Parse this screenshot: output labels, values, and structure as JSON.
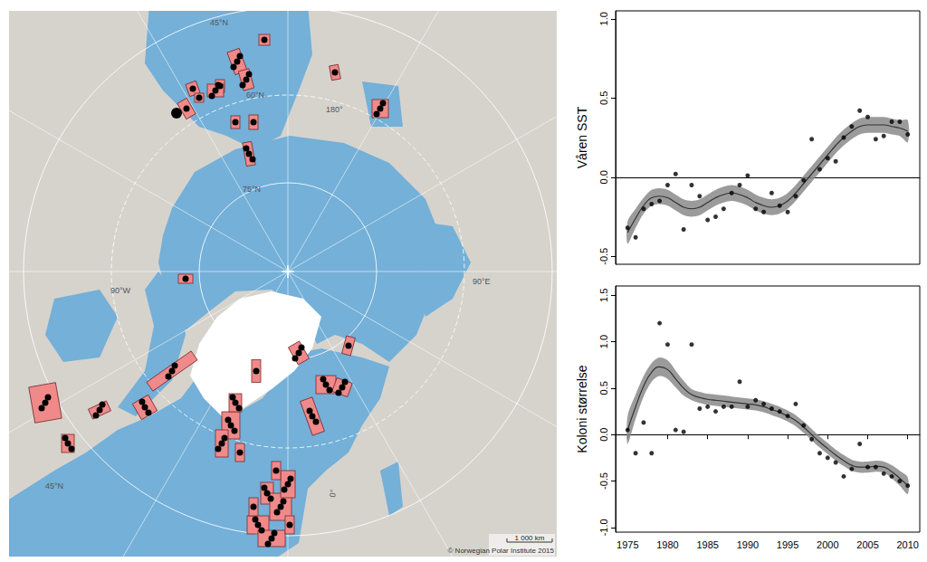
{
  "map": {
    "labels": [
      "45°N",
      "60°N",
      "75°N",
      "180°",
      "90°W",
      "90°E",
      "0°",
      "45°N"
    ],
    "scale_bar": "1 000 km",
    "credit": "© Norwegian Polar Institute 2015"
  },
  "chart_data": [
    {
      "type": "scatter",
      "y_label": "Våren SST",
      "color": "#000000",
      "tick_labels": "y",
      "x": [
        1975,
        1976,
        1977,
        1978,
        1979,
        1980,
        1981,
        1982,
        1983,
        1984,
        1985,
        1986,
        1987,
        1988,
        1989,
        1990,
        1991,
        1992,
        1993,
        1994,
        1995,
        1996,
        1997,
        1998,
        1999,
        2000,
        2001,
        2002,
        2003,
        2004,
        2005,
        2006,
        2007,
        2008,
        2009,
        2010
      ],
      "values": [
        -0.32,
        -0.38,
        -0.2,
        -0.17,
        -0.15,
        -0.05,
        0.02,
        -0.33,
        -0.05,
        -0.12,
        -0.27,
        -0.25,
        -0.2,
        -0.1,
        -0.05,
        0.01,
        -0.2,
        -0.22,
        -0.1,
        -0.18,
        -0.22,
        -0.12,
        -0.02,
        0.24,
        0.05,
        0.12,
        0.1,
        0.25,
        0.32,
        0.42,
        0.38,
        0.24,
        0.26,
        0.35,
        0.35,
        0.27
      ],
      "fit": [
        -0.35,
        -0.26,
        -0.18,
        -0.13,
        -0.12,
        -0.13,
        -0.16,
        -0.19,
        -0.2,
        -0.19,
        -0.16,
        -0.13,
        -0.11,
        -0.1,
        -0.11,
        -0.13,
        -0.16,
        -0.18,
        -0.19,
        -0.18,
        -0.15,
        -0.1,
        -0.04,
        0.02,
        0.08,
        0.14,
        0.2,
        0.25,
        0.29,
        0.32,
        0.33,
        0.33,
        0.33,
        0.32,
        0.31,
        0.29
      ],
      "fit_lower": [
        -0.42,
        -0.32,
        -0.23,
        -0.18,
        -0.17,
        -0.18,
        -0.21,
        -0.24,
        -0.25,
        -0.24,
        -0.21,
        -0.18,
        -0.16,
        -0.15,
        -0.16,
        -0.18,
        -0.21,
        -0.23,
        -0.24,
        -0.23,
        -0.2,
        -0.15,
        -0.09,
        -0.03,
        0.03,
        0.09,
        0.15,
        0.2,
        0.24,
        0.27,
        0.28,
        0.28,
        0.28,
        0.27,
        0.26,
        0.22
      ],
      "fit_upper": [
        -0.28,
        -0.2,
        -0.13,
        -0.08,
        -0.07,
        -0.08,
        -0.11,
        -0.14,
        -0.15,
        -0.14,
        -0.11,
        -0.08,
        -0.06,
        -0.05,
        -0.06,
        -0.08,
        -0.11,
        -0.13,
        -0.14,
        -0.13,
        -0.1,
        -0.05,
        0.01,
        0.07,
        0.13,
        0.19,
        0.25,
        0.3,
        0.34,
        0.37,
        0.38,
        0.38,
        0.38,
        0.37,
        0.36,
        0.36
      ],
      "xlim": [
        1973.5,
        2011.5
      ],
      "xticks": [
        1975,
        1980,
        1985,
        1990,
        1995,
        2000,
        2005,
        2010
      ],
      "ylim": [
        -0.55,
        1.05
      ],
      "yticks": [
        -0.5,
        {
          "value": 0,
          "label": "0.0"
        },
        0.5,
        {
          "value": 1,
          "label": "1.0"
        }
      ]
    },
    {
      "type": "scatter",
      "y_label": "Koloni størrelse",
      "color": "#000000",
      "x": [
        1975,
        1976,
        1977,
        1978,
        1979,
        1980,
        1981,
        1982,
        1983,
        1984,
        1985,
        1986,
        1987,
        1988,
        1989,
        1990,
        1991,
        1992,
        1993,
        1994,
        1995,
        1996,
        1997,
        1998,
        1999,
        2000,
        2001,
        2002,
        2003,
        2004,
        2005,
        2006,
        2007,
        2008,
        2009,
        2010
      ],
      "values": [
        0.05,
        -0.2,
        0.13,
        -0.2,
        1.2,
        0.97,
        0.05,
        0.03,
        0.97,
        0.28,
        0.3,
        0.25,
        0.3,
        0.3,
        0.57,
        0.3,
        0.37,
        0.33,
        0.28,
        0.25,
        0.2,
        0.33,
        0.1,
        -0.05,
        -0.2,
        -0.25,
        -0.3,
        -0.45,
        -0.37,
        -0.1,
        -0.35,
        -0.35,
        -0.42,
        -0.45,
        -0.5,
        -0.55
      ],
      "fit": [
        0.05,
        0.3,
        0.52,
        0.67,
        0.73,
        0.7,
        0.6,
        0.5,
        0.43,
        0.4,
        0.38,
        0.37,
        0.36,
        0.35,
        0.34,
        0.33,
        0.32,
        0.3,
        0.27,
        0.24,
        0.2,
        0.15,
        0.08,
        0.0,
        -0.08,
        -0.15,
        -0.22,
        -0.28,
        -0.33,
        -0.35,
        -0.35,
        -0.34,
        -0.35,
        -0.4,
        -0.47,
        -0.55
      ],
      "fit_lower": [
        -0.1,
        0.17,
        0.41,
        0.57,
        0.63,
        0.6,
        0.51,
        0.42,
        0.37,
        0.34,
        0.32,
        0.31,
        0.3,
        0.29,
        0.28,
        0.27,
        0.26,
        0.24,
        0.21,
        0.18,
        0.14,
        0.09,
        0.02,
        -0.06,
        -0.14,
        -0.21,
        -0.28,
        -0.34,
        -0.39,
        -0.41,
        -0.41,
        -0.4,
        -0.41,
        -0.47,
        -0.55,
        -0.64
      ],
      "fit_upper": [
        0.2,
        0.43,
        0.63,
        0.77,
        0.83,
        0.8,
        0.69,
        0.58,
        0.49,
        0.46,
        0.44,
        0.43,
        0.42,
        0.41,
        0.4,
        0.39,
        0.38,
        0.36,
        0.33,
        0.3,
        0.26,
        0.21,
        0.14,
        0.06,
        -0.02,
        -0.09,
        -0.16,
        -0.22,
        -0.27,
        -0.29,
        -0.29,
        -0.28,
        -0.29,
        -0.33,
        -0.39,
        -0.46
      ],
      "xlim": [
        1973.5,
        2011.5
      ],
      "xticks": [
        1975,
        1980,
        1985,
        1990,
        1995,
        2000,
        2005,
        2010
      ],
      "ylim": [
        -1.05,
        1.6
      ],
      "yticks": [
        {
          "value": -1,
          "label": "-1.0"
        },
        -0.5,
        {
          "value": 0,
          "label": "0.0"
        },
        0.5,
        {
          "value": 1,
          "label": "1.0"
        },
        1.5
      ]
    }
  ]
}
